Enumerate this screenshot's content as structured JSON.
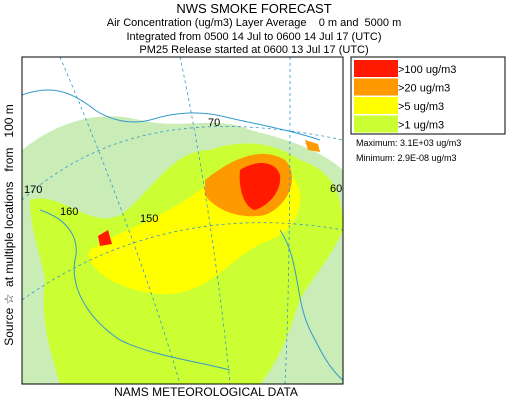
{
  "header": {
    "title": "NWS SMOKE FORECAST",
    "lines": [
      "Air Concentration (ug/m3) Layer Average    0 m and  5000 m",
      "Integrated from 0500 14 Jul to 0600 14 Jul 17 (UTC)",
      "PM25 Release started at 0600 13 Jul 17 (UTC)"
    ]
  },
  "side_label": "Source ☆  at multiple locations   from   100 m",
  "legend": {
    "items": [
      {
        "label": ">100 ug/m3",
        "color": "#ff1a00"
      },
      {
        "label": ">20 ug/m3",
        "color": "#ff9900"
      },
      {
        "label": ">5 ug/m3",
        "color": "#ffff00"
      },
      {
        "label": ">1 ug/m3",
        "color": "#ccff33"
      }
    ],
    "maximum": "Maximum: 3.1E+03 ug/m3",
    "minimum": "Minimum: 2.9E-08 ug/m3"
  },
  "map": {
    "grid_labels": [
      "170",
      "160",
      "150",
      "70",
      "60"
    ]
  },
  "footer": "NAMS METEOROLOGICAL DATA"
}
